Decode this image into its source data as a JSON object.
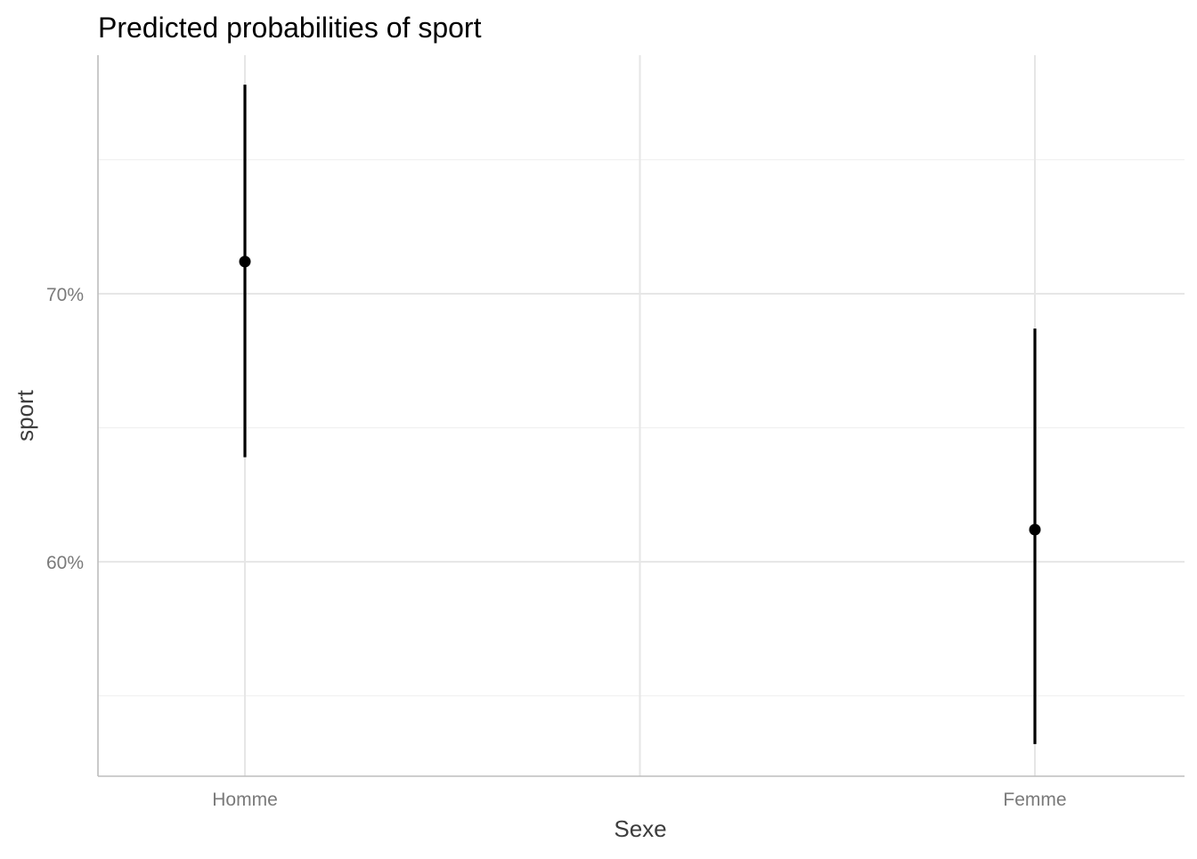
{
  "chart_data": {
    "type": "errorbar",
    "title": "Predicted probabilities of sport",
    "xlabel": "Sexe",
    "ylabel": "sport",
    "categories": [
      "Homme",
      "Femme"
    ],
    "estimates": [
      71.2,
      61.2
    ],
    "conf_low": [
      63.9,
      53.2
    ],
    "conf_high": [
      77.8,
      68.7
    ],
    "yticks": [
      60,
      70
    ],
    "ytick_labels": [
      "60%",
      "70%"
    ],
    "ylim": [
      52.0,
      78.9
    ],
    "grid": true,
    "legend": "none",
    "colors": {
      "marks": "#000000",
      "grid": "#e6e6e6",
      "axis": "#bdbdbd"
    }
  }
}
